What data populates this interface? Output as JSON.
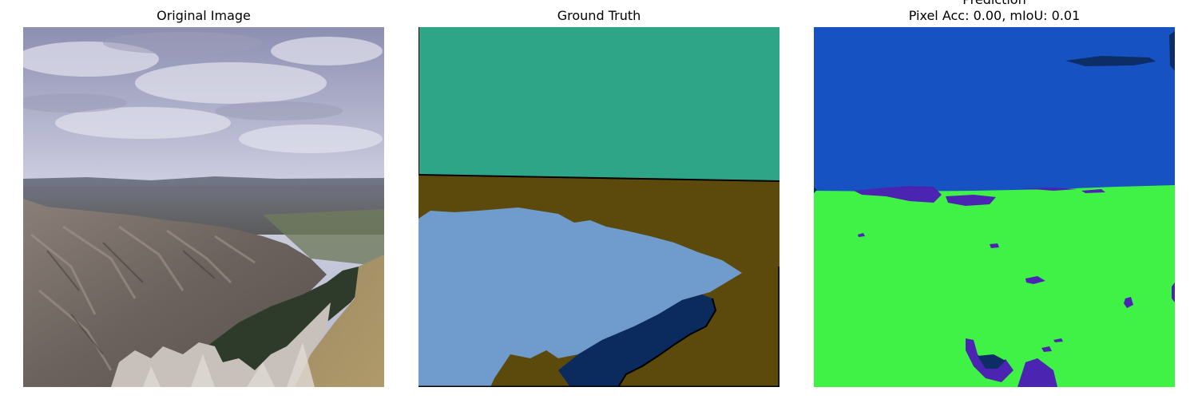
{
  "panels": {
    "original": {
      "title": "Original Image"
    },
    "ground_truth": {
      "title": "Ground Truth",
      "colors": {
        "sky": "#2ea586",
        "land": "#5c4a0d",
        "rock": "#6f9ccc",
        "vegetation": "#0b2a5e",
        "edge": "#000000"
      }
    },
    "prediction": {
      "title": "Prediction",
      "metrics": "Pixel Acc: 0.00, mIoU: 0.01",
      "colors": {
        "sky": "#1752c3",
        "ground": "#40f246",
        "purple": "#4b25b2",
        "navy": "#0c2d66"
      }
    }
  }
}
